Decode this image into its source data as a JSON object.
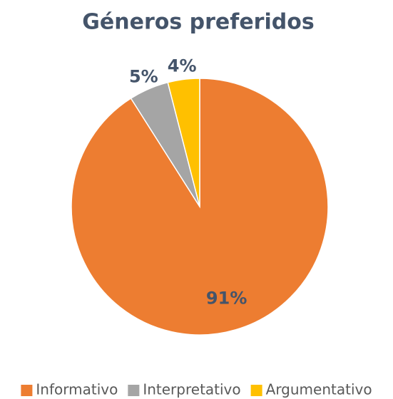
{
  "chart_data": {
    "type": "pie",
    "title": "Géneros preferidos",
    "categories": [
      "Informativo",
      "Interpretativo",
      "Argumentativo"
    ],
    "values": [
      91,
      5,
      4
    ],
    "value_labels": [
      "91%",
      "5%",
      "4%"
    ],
    "colors": [
      "#ED7D31",
      "#A5A5A5",
      "#FFC000"
    ],
    "legend": "bottom"
  }
}
